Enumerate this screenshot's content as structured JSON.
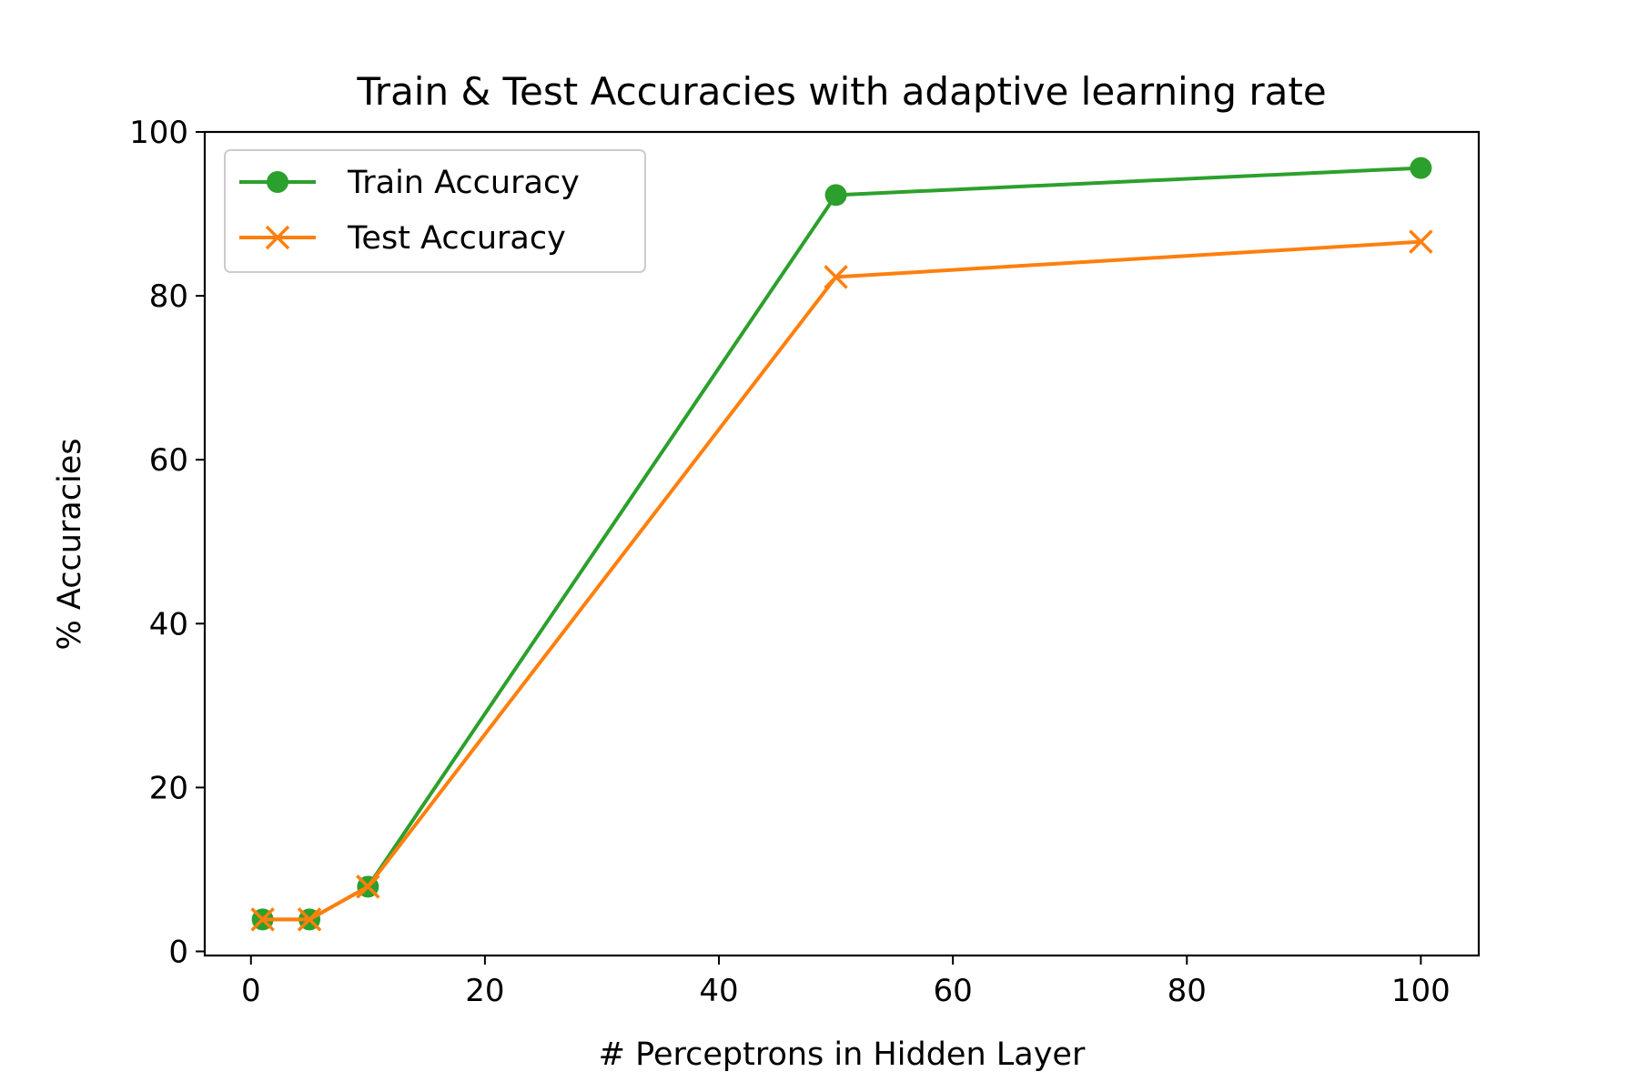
{
  "chart_data": {
    "type": "line",
    "title": "Train & Test Accuracies with adaptive learning rate",
    "xlabel": "# Perceptrons in Hidden Layer",
    "ylabel": "% Accuracies",
    "x": [
      1,
      5,
      10,
      50,
      100
    ],
    "xlim": [
      -3.95,
      104.95
    ],
    "ylim": [
      -0.5,
      100
    ],
    "xticks": [
      0,
      20,
      40,
      60,
      80,
      100
    ],
    "yticks": [
      0,
      20,
      40,
      60,
      80,
      100
    ],
    "grid": false,
    "legend_position": "upper left",
    "series": [
      {
        "name": "Train Accuracy",
        "values": [
          3.9,
          3.9,
          7.9,
          92.3,
          95.6
        ],
        "color": "#2ca02c",
        "marker": "circle"
      },
      {
        "name": "Test Accuracy",
        "values": [
          3.9,
          3.9,
          7.9,
          82.3,
          86.6
        ],
        "color": "#ff7f0e",
        "marker": "x"
      }
    ]
  }
}
